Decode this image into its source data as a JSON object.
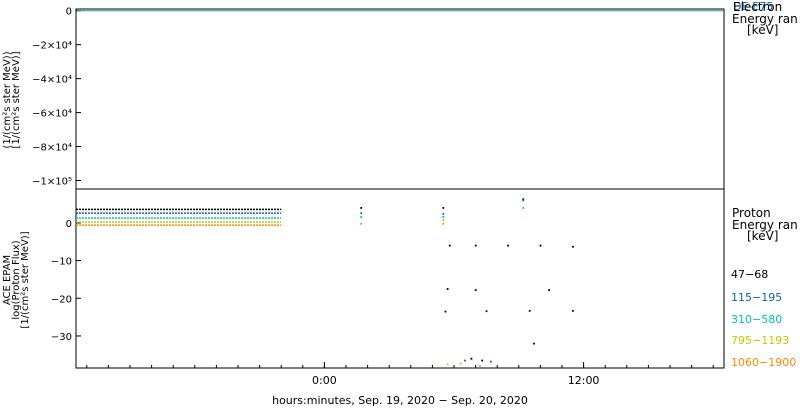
{
  "chart_data": [
    {
      "type": "line",
      "ylabel_lines": [
        "(1/(cm²s ster MeV))",
        "[1/(cm²s ster MeV)]"
      ],
      "ytick_labels": [
        "0",
        "−2×10⁴",
        "−4×10⁴",
        "−6×10⁴",
        "−8×10⁴",
        "−1×10⁵"
      ],
      "yticks": [
        0,
        -20000,
        -40000,
        -60000,
        -80000,
        -100000
      ],
      "ylim": [
        -105000,
        1000
      ],
      "legend_title": [
        "Electron",
        "Energy ran",
        "[keV]"
      ],
      "legend_overlap_label": "DE-E75",
      "series": [
        {
          "color": "#00a0a0",
          "values": [
            [
              0,
              0
            ],
            [
              20,
              0
            ]
          ]
        }
      ],
      "colors": {
        "series": "#00a0a0",
        "legend_text": "#1060c0"
      }
    },
    {
      "type": "scatter",
      "ylabel_lines": [
        "ACE EPAM",
        "log(Proton Flux)",
        "[1/(cm²s ster MeV)]"
      ],
      "ytick_labels": [
        "0",
        "−10",
        "−20",
        "−30"
      ],
      "yticks": [
        0,
        -10,
        -20,
        -30
      ],
      "ylim": [
        -38.5,
        9
      ],
      "xlabel": "hours:minutes, Sep. 19, 2020 − Sep. 20, 2020",
      "xtick_labels": [
        "0:00",
        "12:00"
      ],
      "xticks": [
        0,
        12
      ],
      "xlim": [
        -11.5,
        18.5
      ],
      "legend_title": [
        "Proton",
        "Energy ran",
        "[keV]"
      ],
      "series": [
        {
          "name": "47−68",
          "color": "#000000",
          "points": [
            [
              -11.5,
              3.6
            ],
            [
              -2,
              3.6
            ],
            [
              1.7,
              4
            ],
            [
              5.5,
              4
            ],
            [
              9.2,
              6.3
            ],
            [
              5.8,
              -6
            ],
            [
              7,
              -6
            ],
            [
              8.5,
              -6
            ],
            [
              10,
              -6
            ],
            [
              11.5,
              -6.3
            ],
            [
              5.7,
              -17.5
            ],
            [
              7,
              -17.8
            ],
            [
              10.4,
              -17.8
            ],
            [
              5.6,
              -23.5
            ],
            [
              7.5,
              -23.4
            ],
            [
              9.5,
              -23.3
            ],
            [
              11.5,
              -23.3
            ],
            [
              9.7,
              -32
            ],
            [
              6.8,
              -36
            ],
            [
              7.3,
              -36.5
            ]
          ]
        },
        {
          "name": "115−195",
          "color": "#1060c0",
          "points": [
            [
              -11.5,
              2.6
            ],
            [
              -2,
              2.6
            ],
            [
              1.7,
              2.6
            ],
            [
              5.5,
              2.4
            ],
            [
              9.2,
              6
            ],
            [
              6.5,
              -36.5
            ],
            [
              7.7,
              -36.8
            ]
          ]
        },
        {
          "name": "310−580",
          "color": "#00c0c0",
          "points": [
            [
              -11.5,
              1.3
            ],
            [
              -2,
              1.3
            ],
            [
              1.7,
              1.6
            ],
            [
              5.5,
              1.6
            ],
            [
              9.2,
              4
            ]
          ]
        },
        {
          "name": "795−1193",
          "color": "#c8c800",
          "points": [
            [
              -11.5,
              0.2
            ],
            [
              -2,
              0.2
            ],
            [
              5.5,
              0.8
            ],
            [
              5.7,
              -37.5
            ],
            [
              6.3,
              -37.3
            ]
          ]
        },
        {
          "name": "1060−1900",
          "color": "#ff8c00",
          "points": [
            [
              -11.5,
              -0.6
            ],
            [
              -2,
              -0.6
            ],
            [
              1.7,
              -0.2
            ],
            [
              5.5,
              -0.2
            ],
            [
              7.2,
              -38
            ]
          ]
        }
      ]
    }
  ]
}
